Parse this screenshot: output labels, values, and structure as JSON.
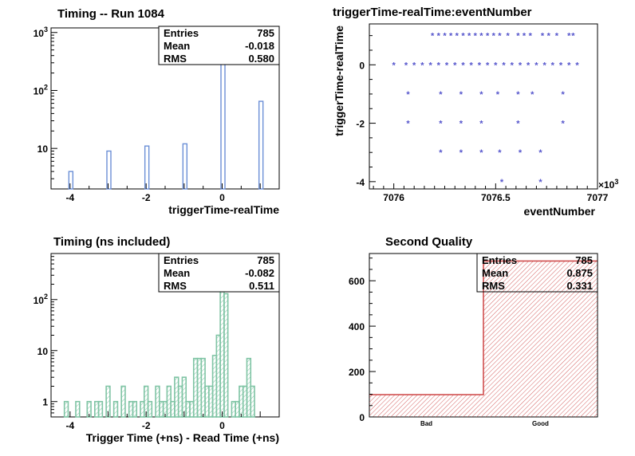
{
  "chart_data": [
    {
      "type": "bar",
      "title": "Timing -- Run 1084",
      "xlabel": "triggerTime-realTime",
      "ylabel": "",
      "yscale": "log",
      "xlim": [
        -4.5,
        1.5
      ],
      "ylim": [
        2,
        1200
      ],
      "x_ticks": [
        -4,
        -2,
        0
      ],
      "x_tick_labels": [
        "-4",
        "-2",
        "0"
      ],
      "y_tick_labels": [
        {
          "v": 10,
          "base": "10",
          "exp": ""
        },
        {
          "v": 100,
          "base": "10",
          "exp": "2"
        },
        {
          "v": 1000,
          "base": "10",
          "exp": "3"
        }
      ],
      "color": "#6b8fd6",
      "bars": [
        {
          "x": -4,
          "y": 4
        },
        {
          "x": -3,
          "y": 9
        },
        {
          "x": -2,
          "y": 11
        },
        {
          "x": -1,
          "y": 12
        },
        {
          "x": 0,
          "y": 700
        },
        {
          "x": 1,
          "y": 65
        }
      ],
      "stats": {
        "entries_label": "Entries",
        "entries": "785",
        "mean_label": "Mean",
        "mean": "-0.018",
        "rms_label": "RMS",
        "rms": "0.580"
      }
    },
    {
      "type": "scatter",
      "title": "triggerTime-realTime:eventNumber",
      "xlabel": "eventNumber",
      "ylabel": "triggerTime-realTime",
      "xlim": [
        7075.88,
        7077.0
      ],
      "ylim": [
        -4.25,
        1.4
      ],
      "x_ticks": [
        7076,
        7076.5,
        7077
      ],
      "x_tick_labels": [
        "7076",
        "7076.5",
        "7077"
      ],
      "x_exponent_label": "×10",
      "x_exponent": "3",
      "y_ticks": [
        -4,
        -2,
        0
      ],
      "y_tick_labels": [
        "-4",
        "-2",
        "0"
      ],
      "color": "#5555cc",
      "marker": "*",
      "points": [
        {
          "x": 7076.0,
          "y": 0
        },
        {
          "x": 7076.06,
          "y": 0
        },
        {
          "x": 7076.1,
          "y": 0
        },
        {
          "x": 7076.14,
          "y": 0
        },
        {
          "x": 7076.18,
          "y": 0
        },
        {
          "x": 7076.22,
          "y": 0
        },
        {
          "x": 7076.26,
          "y": 0
        },
        {
          "x": 7076.3,
          "y": 0
        },
        {
          "x": 7076.34,
          "y": 0
        },
        {
          "x": 7076.38,
          "y": 0
        },
        {
          "x": 7076.42,
          "y": 0
        },
        {
          "x": 7076.46,
          "y": 0
        },
        {
          "x": 7076.5,
          "y": 0
        },
        {
          "x": 7076.54,
          "y": 0
        },
        {
          "x": 7076.58,
          "y": 0
        },
        {
          "x": 7076.62,
          "y": 0
        },
        {
          "x": 7076.66,
          "y": 0
        },
        {
          "x": 7076.7,
          "y": 0
        },
        {
          "x": 7076.74,
          "y": 0
        },
        {
          "x": 7076.78,
          "y": 0
        },
        {
          "x": 7076.82,
          "y": 0
        },
        {
          "x": 7076.86,
          "y": 0
        },
        {
          "x": 7076.9,
          "y": 0
        },
        {
          "x": 7076.19,
          "y": 1
        },
        {
          "x": 7076.22,
          "y": 1
        },
        {
          "x": 7076.25,
          "y": 1
        },
        {
          "x": 7076.28,
          "y": 1
        },
        {
          "x": 7076.31,
          "y": 1
        },
        {
          "x": 7076.34,
          "y": 1
        },
        {
          "x": 7076.37,
          "y": 1
        },
        {
          "x": 7076.4,
          "y": 1
        },
        {
          "x": 7076.43,
          "y": 1
        },
        {
          "x": 7076.46,
          "y": 1
        },
        {
          "x": 7076.49,
          "y": 1
        },
        {
          "x": 7076.52,
          "y": 1
        },
        {
          "x": 7076.56,
          "y": 1
        },
        {
          "x": 7076.61,
          "y": 1
        },
        {
          "x": 7076.64,
          "y": 1
        },
        {
          "x": 7076.67,
          "y": 1
        },
        {
          "x": 7076.73,
          "y": 1
        },
        {
          "x": 7076.76,
          "y": 1
        },
        {
          "x": 7076.8,
          "y": 1
        },
        {
          "x": 7076.86,
          "y": 1
        },
        {
          "x": 7076.88,
          "y": 1
        },
        {
          "x": 7076.07,
          "y": -1
        },
        {
          "x": 7076.23,
          "y": -1
        },
        {
          "x": 7076.33,
          "y": -1
        },
        {
          "x": 7076.43,
          "y": -1
        },
        {
          "x": 7076.51,
          "y": -1
        },
        {
          "x": 7076.61,
          "y": -1
        },
        {
          "x": 7076.68,
          "y": -1
        },
        {
          "x": 7076.83,
          "y": -1
        },
        {
          "x": 7076.07,
          "y": -2
        },
        {
          "x": 7076.23,
          "y": -2
        },
        {
          "x": 7076.33,
          "y": -2
        },
        {
          "x": 7076.43,
          "y": -2
        },
        {
          "x": 7076.61,
          "y": -2
        },
        {
          "x": 7076.83,
          "y": -2
        },
        {
          "x": 7076.23,
          "y": -3
        },
        {
          "x": 7076.33,
          "y": -3
        },
        {
          "x": 7076.43,
          "y": -3
        },
        {
          "x": 7076.52,
          "y": -3
        },
        {
          "x": 7076.62,
          "y": -3
        },
        {
          "x": 7076.72,
          "y": -3
        },
        {
          "x": 7076.53,
          "y": -4
        },
        {
          "x": 7076.72,
          "y": -4
        }
      ]
    },
    {
      "type": "bar",
      "title": "Timing (ns included)",
      "xlabel": "Trigger Time (+ns) - Read Time (+ns)",
      "ylabel": "",
      "yscale": "log",
      "xlim": [
        -4.5,
        1.5
      ],
      "ylim": [
        0.5,
        800
      ],
      "x_ticks": [
        -4,
        -2,
        0
      ],
      "x_tick_labels": [
        "-4",
        "-2",
        "0"
      ],
      "y_tick_labels": [
        {
          "v": 1,
          "base": "1",
          "exp": ""
        },
        {
          "v": 10,
          "base": "10",
          "exp": ""
        },
        {
          "v": 100,
          "base": "10",
          "exp": "2"
        }
      ],
      "color": "#7fc4a4",
      "bin_width": 0.1,
      "bins": [
        {
          "x": -4.1,
          "y": 1
        },
        {
          "x": -3.8,
          "y": 1
        },
        {
          "x": -3.5,
          "y": 1
        },
        {
          "x": -3.3,
          "y": 1
        },
        {
          "x": -3.2,
          "y": 1
        },
        {
          "x": -3.0,
          "y": 2
        },
        {
          "x": -2.8,
          "y": 1
        },
        {
          "x": -2.6,
          "y": 2
        },
        {
          "x": -2.4,
          "y": 1
        },
        {
          "x": -2.3,
          "y": 1
        },
        {
          "x": -2.1,
          "y": 1
        },
        {
          "x": -2.0,
          "y": 2
        },
        {
          "x": -1.9,
          "y": 1
        },
        {
          "x": -1.7,
          "y": 2
        },
        {
          "x": -1.6,
          "y": 1
        },
        {
          "x": -1.5,
          "y": 1
        },
        {
          "x": -1.4,
          "y": 2
        },
        {
          "x": -1.3,
          "y": 1
        },
        {
          "x": -1.2,
          "y": 3
        },
        {
          "x": -1.1,
          "y": 2
        },
        {
          "x": -1.0,
          "y": 3
        },
        {
          "x": -0.9,
          "y": 1
        },
        {
          "x": -0.8,
          "y": 1
        },
        {
          "x": -0.7,
          "y": 7
        },
        {
          "x": -0.6,
          "y": 7
        },
        {
          "x": -0.5,
          "y": 7
        },
        {
          "x": -0.4,
          "y": 2
        },
        {
          "x": -0.3,
          "y": 2
        },
        {
          "x": -0.2,
          "y": 8
        },
        {
          "x": -0.1,
          "y": 20
        },
        {
          "x": 0.0,
          "y": 400
        },
        {
          "x": 0.1,
          "y": 130
        },
        {
          "x": 0.3,
          "y": 1
        },
        {
          "x": 0.4,
          "y": 1
        },
        {
          "x": 0.5,
          "y": 2
        },
        {
          "x": 0.6,
          "y": 2
        },
        {
          "x": 0.7,
          "y": 7
        },
        {
          "x": 0.8,
          "y": 2
        }
      ],
      "stats": {
        "entries_label": "Entries",
        "entries": "785",
        "mean_label": "Mean",
        "mean": "-0.082",
        "rms_label": "RMS",
        "rms": "0.511"
      }
    },
    {
      "type": "bar",
      "title": "Second Quality",
      "xlabel": "",
      "ylabel": "",
      "categories": [
        "Bad",
        "Good"
      ],
      "values": [
        98,
        687
      ],
      "ylim": [
        0,
        720
      ],
      "y_ticks": [
        0,
        200,
        400,
        600
      ],
      "color": "#d05050",
      "stats": {
        "entries_label": "Entries",
        "entries": "785",
        "mean_label": "Mean",
        "mean": "0.875",
        "rms_label": "RMS",
        "rms": "0.331"
      }
    }
  ]
}
